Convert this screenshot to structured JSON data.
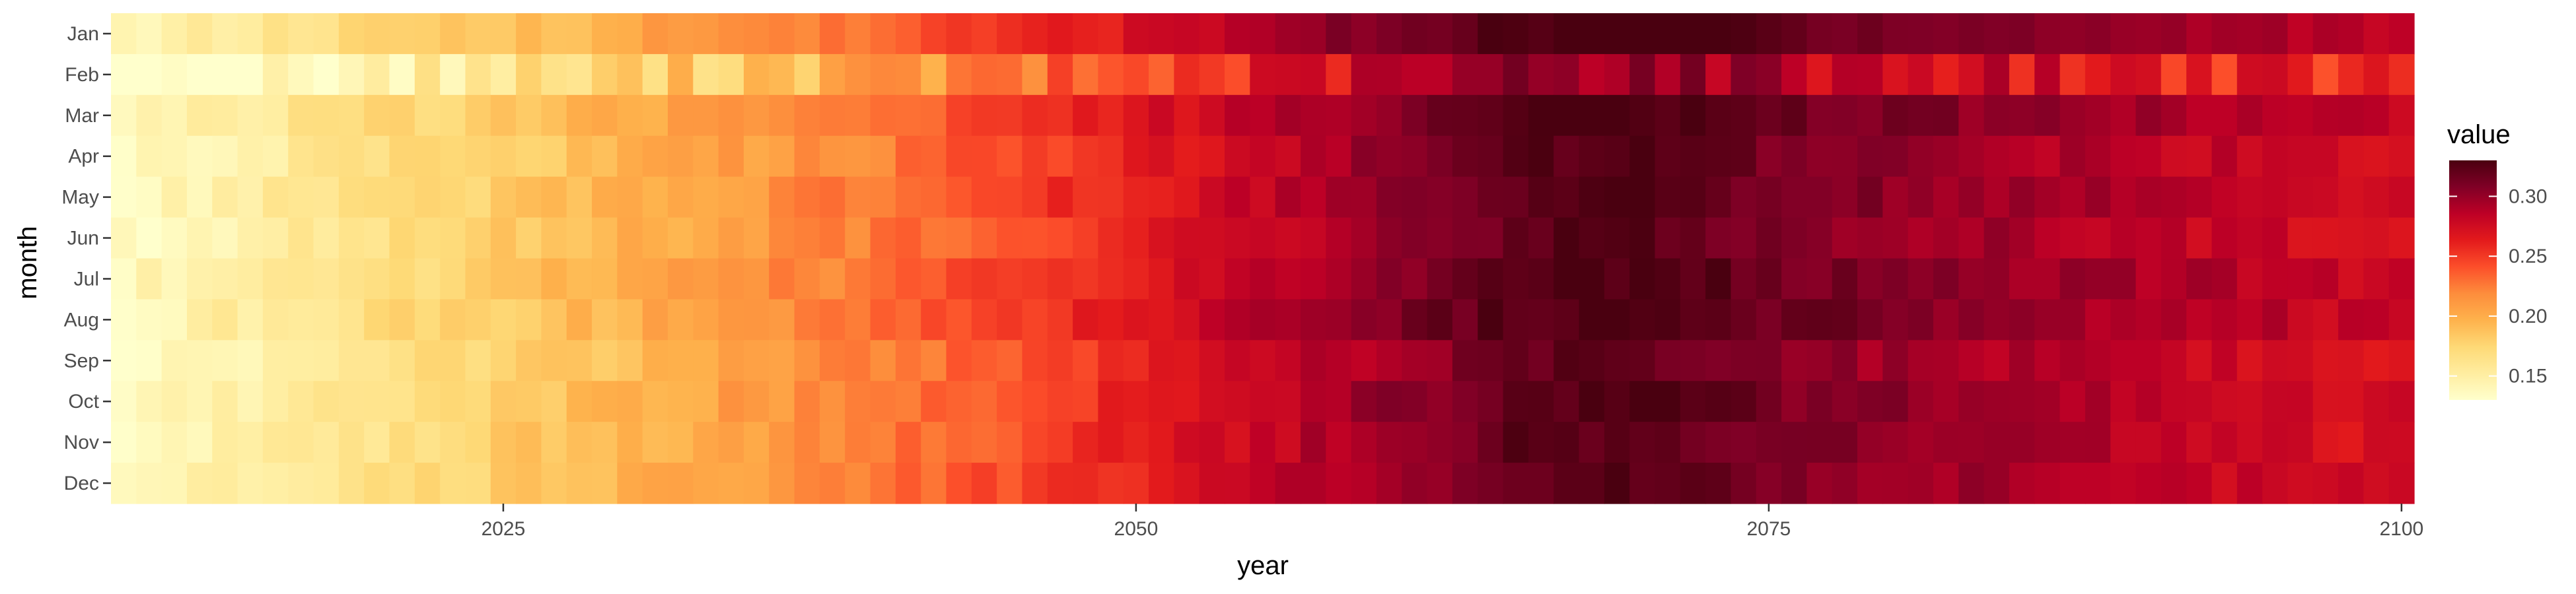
{
  "chart_data": {
    "type": "heatmap",
    "title": "",
    "xlabel": "year",
    "ylabel": "month",
    "x_start": 2010,
    "x_end": 2100,
    "xlim": [
      2009.5,
      2100.5
    ],
    "x_ticks": [
      2025,
      2050,
      2075,
      2100
    ],
    "x_tick_labels": [
      "2025",
      "2050",
      "2075",
      "2100"
    ],
    "months": [
      "Jan",
      "Feb",
      "Mar",
      "Apr",
      "May",
      "Jun",
      "Jul",
      "Aug",
      "Sep",
      "Oct",
      "Nov",
      "Dec"
    ],
    "value_range": [
      0.13,
      0.33
    ],
    "legend": {
      "title": "value",
      "ticks": [
        0.15,
        0.2,
        0.25,
        0.3
      ],
      "tick_labels": [
        "0.15",
        "0.20",
        "0.25",
        "0.30"
      ],
      "placement": "right"
    },
    "colormap": [
      "#ffffcc",
      "#ffeda0",
      "#fed976",
      "#feb24c",
      "#fd8d3c",
      "#fc4e2a",
      "#e31a1c",
      "#bd0026",
      "#800026",
      "#4a0010"
    ],
    "grid": false,
    "trend_profile": {
      "x": [
        2010,
        2020,
        2030,
        2040,
        2050,
        2060,
        2065,
        2070,
        2075,
        2080,
        2090,
        2100
      ],
      "value": [
        0.135,
        0.165,
        0.195,
        0.225,
        0.26,
        0.3,
        0.32,
        0.325,
        0.31,
        0.3,
        0.285,
        0.27
      ]
    },
    "month_offsets": {
      "Jan": 0.015,
      "Feb": -0.06,
      "Mar": 0.01,
      "Apr": 0.0,
      "May": 0.005,
      "Jun": 0.0,
      "Jul": 0.008,
      "Aug": 0.008,
      "Sep": -0.005,
      "Oct": 0.002,
      "Nov": 0.0,
      "Dec": 0.0
    }
  }
}
